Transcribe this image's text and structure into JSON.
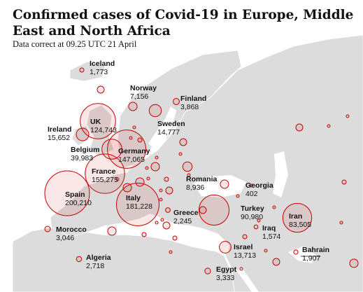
{
  "header": {
    "title": "Confirmed cases of Covid-19 in Europe, Middle East and North Africa",
    "subtitle": "Data correct at 09.25 UTC 21 April"
  },
  "colors": {
    "land": "#dcdcdc",
    "water": "#ffffff",
    "border": "#ffffff",
    "bubble_stroke": "#c70000",
    "bubble_fill": "rgba(199,0,0,0.09)"
  },
  "map_data": {
    "type": "proportional-symbol-map",
    "countries": [
      {
        "name": "Iceland",
        "cases": "1,773"
      },
      {
        "name": "Norway",
        "cases": "7,156"
      },
      {
        "name": "Finland",
        "cases": "3,868"
      },
      {
        "name": "UK",
        "cases": "124,743"
      },
      {
        "name": "Ireland",
        "cases": "15,652"
      },
      {
        "name": "Sweden",
        "cases": "14,777"
      },
      {
        "name": "Belgium",
        "cases": "39,983"
      },
      {
        "name": "Germany",
        "cases": "147,065"
      },
      {
        "name": "France",
        "cases": "155,275"
      },
      {
        "name": "Romania",
        "cases": "8,936"
      },
      {
        "name": "Georgia",
        "cases": "402"
      },
      {
        "name": "Spain",
        "cases": "200,210"
      },
      {
        "name": "Italy",
        "cases": "181,228"
      },
      {
        "name": "Turkey",
        "cases": "90,980"
      },
      {
        "name": "Iran",
        "cases": "83,505"
      },
      {
        "name": "Greece",
        "cases": "2,245"
      },
      {
        "name": "Iraq",
        "cases": "1,574"
      },
      {
        "name": "Morocco",
        "cases": "3,046"
      },
      {
        "name": "Israel",
        "cases": "13,713"
      },
      {
        "name": "Bahrain",
        "cases": "1,907"
      },
      {
        "name": "Algeria",
        "cases": "2,718"
      },
      {
        "name": "Egypt",
        "cases": "3,333"
      }
    ]
  }
}
